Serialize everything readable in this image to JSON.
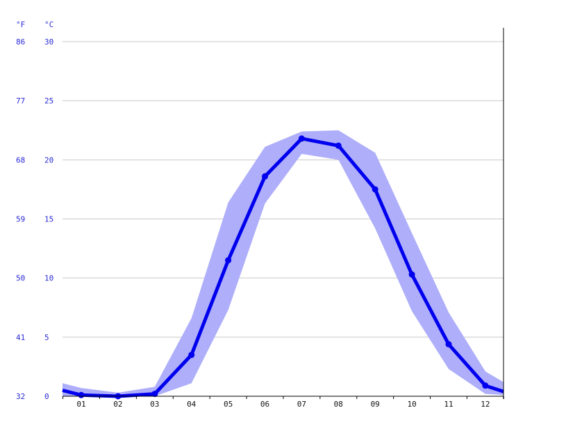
{
  "chart_data": {
    "type": "line",
    "title": "",
    "units": {
      "fahrenheit": "°F",
      "celsius": "°C"
    },
    "categories": [
      "01",
      "02",
      "03",
      "04",
      "05",
      "06",
      "07",
      "08",
      "09",
      "10",
      "11",
      "12"
    ],
    "y_ticks_celsius": [
      "0",
      "5",
      "10",
      "15",
      "20",
      "25",
      "30"
    ],
    "y_ticks_fahrenheit": [
      "32",
      "41",
      "50",
      "59",
      "68",
      "77",
      "86"
    ],
    "ylim": [
      0,
      30
    ],
    "grid": true,
    "series": [
      {
        "values": [
          0.1,
          0.0,
          0.2,
          3.5,
          11.5,
          18.6,
          21.8,
          21.2,
          17.5,
          10.3,
          4.4,
          0.9
        ]
      }
    ],
    "band": {
      "upper": [
        0.7,
        0.3,
        0.8,
        6.6,
        16.4,
        21.1,
        22.4,
        22.5,
        20.6,
        13.8,
        7.1,
        2.1
      ],
      "lower": [
        0.0,
        0.0,
        0.0,
        1.1,
        7.3,
        16.3,
        20.5,
        20.0,
        14.2,
        7.2,
        2.3,
        0.2
      ]
    },
    "edges": {
      "start": 0.5,
      "end": 0.4,
      "band_start": [
        1.1,
        0.0
      ],
      "band_end": [
        1.2,
        0.1
      ]
    },
    "colors": {
      "line": "#0000ee",
      "band": "#aeaefa",
      "tick_text": "#2a2ad6"
    }
  }
}
